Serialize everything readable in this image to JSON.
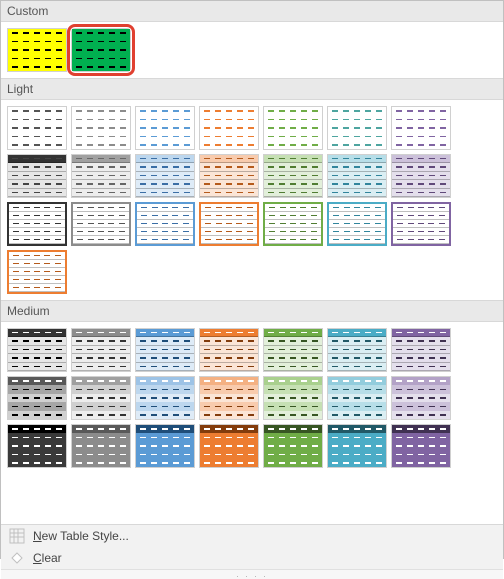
{
  "sections": [
    {
      "label": "Custom",
      "styles": [
        {
          "name": "custom-yellow",
          "kind": "solid",
          "fill": "#ffff00",
          "header": "#ffff00",
          "dash": "#000000",
          "highlight": false
        },
        {
          "name": "custom-green",
          "kind": "solid",
          "fill": "#00b050",
          "header": "#00b050",
          "dash": "#000000",
          "highlight": true
        }
      ]
    },
    {
      "label": "Light",
      "styles": [
        {
          "name": "light-none-dark",
          "kind": "plain",
          "fill": "#ffffff",
          "dash": "#555555"
        },
        {
          "name": "light-none-gray",
          "kind": "plain",
          "fill": "#ffffff",
          "dash": "#8c8c8c"
        },
        {
          "name": "light-none-blue",
          "kind": "plain",
          "fill": "#ffffff",
          "dash": "#5b9bd5"
        },
        {
          "name": "light-none-orange",
          "kind": "plain",
          "fill": "#ffffff",
          "dash": "#ed7d31"
        },
        {
          "name": "light-none-green",
          "kind": "plain",
          "fill": "#ffffff",
          "dash": "#70ad47"
        },
        {
          "name": "light-none-teal",
          "kind": "plain",
          "fill": "#ffffff",
          "dash": "#4ea5a0"
        },
        {
          "name": "light-none-purple",
          "kind": "plain",
          "fill": "#ffffff",
          "dash": "#8064a2"
        },
        {
          "name": "light-tint-dark",
          "kind": "tint",
          "fill": "#e6e6e6",
          "header": "#333333",
          "dash": "#444444"
        },
        {
          "name": "light-tint-gray",
          "kind": "tint",
          "fill": "#ededed",
          "header": "#a0a0a0",
          "dash": "#666666"
        },
        {
          "name": "light-tint-blue",
          "kind": "tint",
          "fill": "#deebf7",
          "header": "#bdd7ee",
          "dash": "#3a6ea5"
        },
        {
          "name": "light-tint-orange",
          "kind": "tint",
          "fill": "#fbe5d6",
          "header": "#f8cbad",
          "dash": "#b55a1b"
        },
        {
          "name": "light-tint-green",
          "kind": "tint",
          "fill": "#e2efda",
          "header": "#c6e0b4",
          "dash": "#507d32"
        },
        {
          "name": "light-tint-teal",
          "kind": "tint",
          "fill": "#daeef3",
          "header": "#b7dee8",
          "dash": "#31859c"
        },
        {
          "name": "light-tint-purple",
          "kind": "tint",
          "fill": "#e4dfec",
          "header": "#ccc1da",
          "dash": "#60497a"
        },
        {
          "name": "light-border-dark",
          "kind": "border",
          "fill": "#ffffff",
          "border": "#333333",
          "dash": "#333333"
        },
        {
          "name": "light-border-gray",
          "kind": "border",
          "fill": "#ffffff",
          "border": "#8c8c8c",
          "dash": "#555555"
        },
        {
          "name": "light-border-blue",
          "kind": "border",
          "fill": "#ffffff",
          "border": "#5b9bd5",
          "dash": "#3a6ea5"
        },
        {
          "name": "light-border-orange",
          "kind": "border",
          "fill": "#ffffff",
          "border": "#ed7d31",
          "dash": "#b55a1b"
        },
        {
          "name": "light-border-green",
          "kind": "border",
          "fill": "#ffffff",
          "border": "#70ad47",
          "dash": "#507d32"
        },
        {
          "name": "light-border-teal",
          "kind": "border",
          "fill": "#ffffff",
          "border": "#4bacc6",
          "dash": "#31859c"
        },
        {
          "name": "light-border-purple",
          "kind": "border",
          "fill": "#ffffff",
          "border": "#8064a2",
          "dash": "#60497a"
        },
        {
          "name": "light-border-orange2",
          "kind": "border",
          "fill": "#ffffff",
          "border": "#ed7d31",
          "dash": "#b55a1b"
        }
      ]
    },
    {
      "label": "Medium",
      "styles": [
        {
          "name": "med-hdr-dark",
          "kind": "header",
          "header": "#333333",
          "fill": "#e6e6e6",
          "dash": "#000000"
        },
        {
          "name": "med-hdr-gray",
          "kind": "header",
          "header": "#8c8c8c",
          "fill": "#ededed",
          "dash": "#333333"
        },
        {
          "name": "med-hdr-blue",
          "kind": "header",
          "header": "#5b9bd5",
          "fill": "#deebf7",
          "dash": "#1f4e79"
        },
        {
          "name": "med-hdr-orange",
          "kind": "header",
          "header": "#ed7d31",
          "fill": "#fbe5d6",
          "dash": "#833c0c"
        },
        {
          "name": "med-hdr-green",
          "kind": "header",
          "header": "#70ad47",
          "fill": "#e2efda",
          "dash": "#375623"
        },
        {
          "name": "med-hdr-teal",
          "kind": "header",
          "header": "#4bacc6",
          "fill": "#daeef3",
          "dash": "#215967"
        },
        {
          "name": "med-hdr-purple",
          "kind": "header",
          "header": "#8064a2",
          "fill": "#e4dfec",
          "dash": "#403152"
        },
        {
          "name": "med-band-dark",
          "kind": "banded",
          "header": "#595959",
          "c1": "#a6a6a6",
          "c2": "#d0d0d0",
          "dash": "#000000"
        },
        {
          "name": "med-band-gray",
          "kind": "banded",
          "header": "#a0a0a0",
          "c1": "#d0d0d0",
          "c2": "#ededed",
          "dash": "#333333"
        },
        {
          "name": "med-band-blue",
          "kind": "banded",
          "header": "#9dc3e6",
          "c1": "#bdd7ee",
          "c2": "#deebf7",
          "dash": "#1f4e79"
        },
        {
          "name": "med-band-orange",
          "kind": "banded",
          "header": "#f4b183",
          "c1": "#f8cbad",
          "c2": "#fbe5d6",
          "dash": "#833c0c"
        },
        {
          "name": "med-band-green",
          "kind": "banded",
          "header": "#a9d08e",
          "c1": "#c6e0b4",
          "c2": "#e2efda",
          "dash": "#375623"
        },
        {
          "name": "med-band-teal",
          "kind": "banded",
          "header": "#93cddd",
          "c1": "#b7dee8",
          "c2": "#daeef3",
          "dash": "#215967"
        },
        {
          "name": "med-band-purple",
          "kind": "banded",
          "header": "#b3a2c7",
          "c1": "#ccc1da",
          "c2": "#e4dfec",
          "dash": "#403152"
        },
        {
          "name": "med-dark-dark",
          "kind": "dark",
          "header": "#000000",
          "fill": "#3a3a3a",
          "dash": "#ffffff"
        },
        {
          "name": "med-dark-gray",
          "kind": "dark",
          "header": "#595959",
          "fill": "#8c8c8c",
          "dash": "#ffffff"
        },
        {
          "name": "med-dark-blue",
          "kind": "dark",
          "header": "#1f4e79",
          "fill": "#5b9bd5",
          "dash": "#ffffff"
        },
        {
          "name": "med-dark-orange",
          "kind": "dark",
          "header": "#833c0c",
          "fill": "#ed7d31",
          "dash": "#ffffff"
        },
        {
          "name": "med-dark-green",
          "kind": "dark",
          "header": "#375623",
          "fill": "#70ad47",
          "dash": "#ffffff"
        },
        {
          "name": "med-dark-teal",
          "kind": "dark",
          "header": "#215967",
          "fill": "#4bacc6",
          "dash": "#ffffff"
        },
        {
          "name": "med-dark-purple",
          "kind": "dark",
          "header": "#403152",
          "fill": "#8064a2",
          "dash": "#ffffff"
        }
      ]
    }
  ],
  "footer": {
    "new_style": {
      "text": "ew Table Style...",
      "mnemonic": "N"
    },
    "clear": {
      "text": "lear",
      "mnemonic": "C"
    }
  },
  "colors": {
    "section_bg": "#e9e9e9",
    "section_border": "#d8d8d8",
    "highlight_outline": "#e04030"
  }
}
